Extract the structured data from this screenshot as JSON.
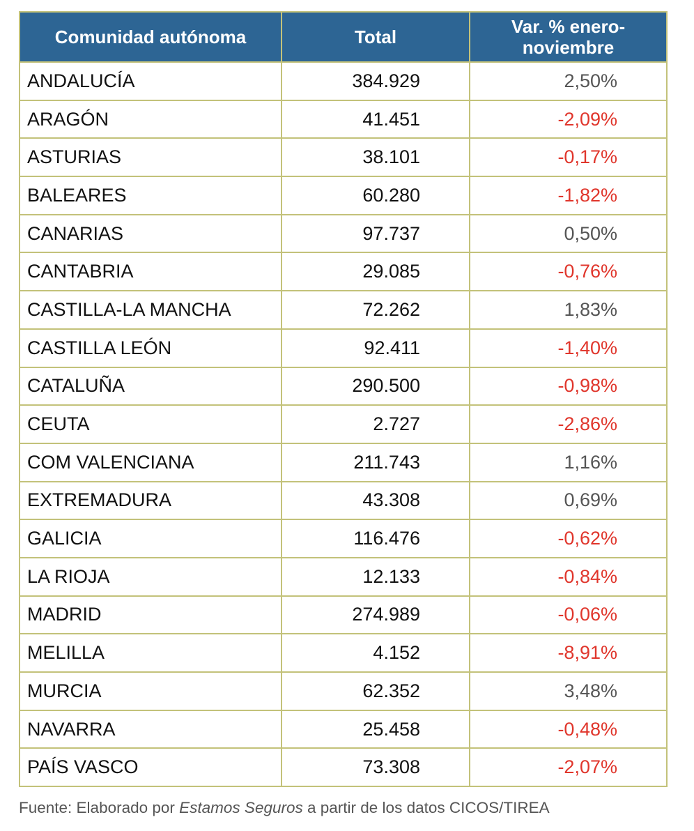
{
  "table": {
    "headers": [
      "Comunidad autónoma",
      "Total",
      "Var. % enero-noviembre"
    ],
    "rows": [
      [
        "ANDALUCÍA",
        "384.929",
        "2,50%"
      ],
      [
        "ARAGÓN",
        "41.451",
        "-2,09%"
      ],
      [
        "ASTURIAS",
        "38.101",
        "-0,17%"
      ],
      [
        "BALEARES",
        "60.280",
        "-1,82%"
      ],
      [
        "CANARIAS",
        "97.737",
        "0,50%"
      ],
      [
        "CANTABRIA",
        "29.085",
        "-0,76%"
      ],
      [
        "CASTILLA-LA MANCHA",
        "72.262",
        "1,83%"
      ],
      [
        "CASTILLA LEÓN",
        "92.411",
        "-1,40%"
      ],
      [
        "CATALUÑA",
        "290.500",
        "-0,98%"
      ],
      [
        "CEUTA",
        "2.727",
        "-2,86%"
      ],
      [
        "COM VALENCIANA",
        "211.743",
        "1,16%"
      ],
      [
        "EXTREMADURA",
        "43.308",
        "0,69%"
      ],
      [
        "GALICIA",
        "116.476",
        "-0,62%"
      ],
      [
        "LA RIOJA",
        "12.133",
        "-0,84%"
      ],
      [
        "MADRID",
        "274.989",
        "-0,06%"
      ],
      [
        "MELILLA",
        "4.152",
        "-8,91%"
      ],
      [
        "MURCIA",
        "62.352",
        "3,48%"
      ],
      [
        "NAVARRA",
        "25.458",
        "-0,48%"
      ],
      [
        "PAÍS VASCO",
        "73.308",
        "-2,07%"
      ]
    ]
  },
  "source": {
    "prefix": "Fuente: Elaborado por ",
    "italic": "Estamos Seguros",
    "suffix": " a partir de los datos CICOS/TIREA"
  },
  "colors": {
    "header_bg": "#2d6594",
    "border": "#c3c27a",
    "negative": "#e0362c",
    "positive": "#555555"
  }
}
